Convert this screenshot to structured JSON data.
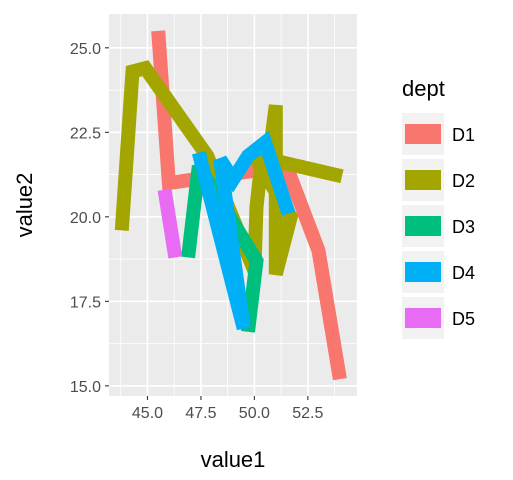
{
  "chart_data": {
    "type": "line",
    "xlabel": "value1",
    "ylabel": "value2",
    "xlim": [
      43.2,
      54.8
    ],
    "ylim": [
      14.7,
      26.0
    ],
    "x_ticks": [
      45.0,
      47.5,
      50.0,
      52.5
    ],
    "x_tick_labels": [
      "45.0",
      "47.5",
      "50.0",
      "52.5"
    ],
    "y_ticks": [
      15.0,
      17.5,
      20.0,
      22.5,
      25.0
    ],
    "y_tick_labels": [
      "15.0",
      "17.5",
      "20.0",
      "22.5",
      "25.0"
    ],
    "grid": true,
    "panel_background": "#ebebeb",
    "legend": {
      "title": "dept",
      "placement": "right",
      "entries": [
        "D1",
        "D2",
        "D3",
        "D4",
        "D5"
      ]
    },
    "series": [
      {
        "name": "D1",
        "color": "#F8766D",
        "points": [
          [
            45.5,
            25.5
          ],
          [
            46.0,
            21.0
          ],
          [
            51.5,
            21.5
          ],
          [
            53.0,
            19.0
          ],
          [
            54.0,
            15.2
          ]
        ]
      },
      {
        "name": "D2",
        "color": "#A3A500",
        "points": [
          [
            43.8,
            19.6
          ],
          [
            44.3,
            24.3
          ],
          [
            44.9,
            24.4
          ],
          [
            47.8,
            21.8
          ],
          [
            50.0,
            18.4
          ],
          [
            50.1,
            20.3
          ],
          [
            50.4,
            22.0
          ],
          [
            50.7,
            21.8
          ],
          [
            51.0,
            23.3
          ],
          [
            51.0,
            18.3
          ],
          [
            51.7,
            20.0
          ],
          [
            50.0,
            21.8
          ],
          [
            54.1,
            21.2
          ]
        ]
      },
      {
        "name": "D3",
        "color": "#00BF7D",
        "points": [
          [
            46.9,
            18.8
          ],
          [
            47.4,
            21.5
          ],
          [
            50.1,
            18.7
          ],
          [
            49.7,
            16.6
          ]
        ]
      },
      {
        "name": "D4",
        "color": "#00B0F6",
        "points": [
          [
            47.4,
            21.9
          ],
          [
            49.5,
            16.7
          ],
          [
            48.4,
            21.7
          ],
          [
            49.0,
            21.1
          ],
          [
            49.7,
            21.8
          ],
          [
            50.5,
            22.2
          ],
          [
            51.6,
            20.1
          ]
        ]
      },
      {
        "name": "D5",
        "color": "#E76BF3",
        "points": [
          [
            45.8,
            20.8
          ],
          [
            46.3,
            18.8
          ]
        ]
      }
    ]
  }
}
